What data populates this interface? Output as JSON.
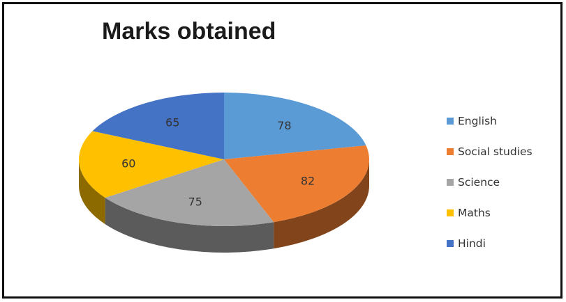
{
  "chart_data": {
    "type": "pie",
    "title": "Marks obtained",
    "slices": [
      {
        "label": "English",
        "value": 78,
        "color": "#5b9bd5"
      },
      {
        "label": "Social studies",
        "value": 82,
        "color": "#ed7d31"
      },
      {
        "label": "Science",
        "value": 75,
        "color": "#a5a5a5"
      },
      {
        "label": "Maths",
        "value": 60,
        "color": "#ffc000"
      },
      {
        "label": "Hindi",
        "value": 65,
        "color": "#4472c4"
      }
    ],
    "style": "3d",
    "legend": "right"
  }
}
